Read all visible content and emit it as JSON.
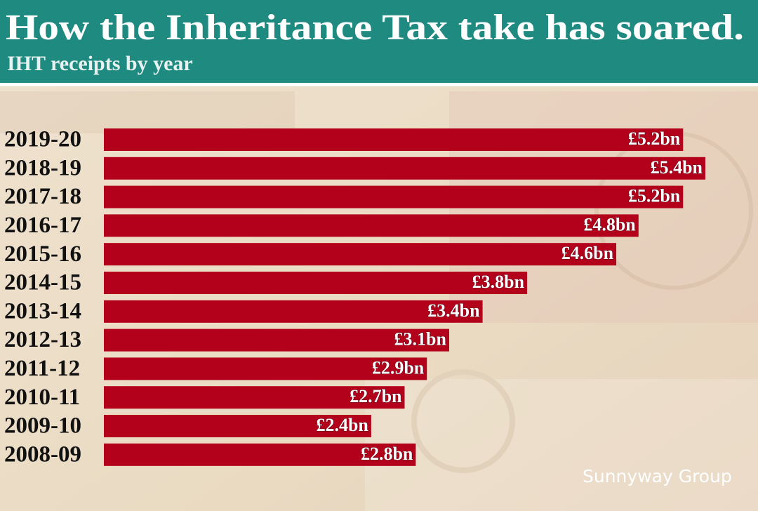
{
  "chart_data": {
    "type": "bar",
    "orientation": "horizontal",
    "title": "How the Inheritance Tax take has soared.",
    "subtitle": "IHT receipts by year",
    "categories": [
      "2019-20",
      "2018-19",
      "2017-18",
      "2016-17",
      "2015-16",
      "2014-15",
      "2013-14",
      "2012-13",
      "2011-12",
      "2010-11",
      "2009-10",
      "2008-09"
    ],
    "values": [
      5.2,
      5.4,
      5.2,
      4.8,
      4.6,
      3.8,
      3.4,
      3.1,
      2.9,
      2.7,
      2.4,
      2.8
    ],
    "value_labels": [
      "£5.2bn",
      "£5.4bn",
      "£5.2bn",
      "£4.8bn",
      "£4.6bn",
      "£3.8bn",
      "£3.4bn",
      "£3.1bn",
      "£2.9bn",
      "£2.7bn",
      "£2.4bn",
      "£2.8bn"
    ],
    "color": "#b3001b",
    "watermark": "Sunnyway Group"
  }
}
